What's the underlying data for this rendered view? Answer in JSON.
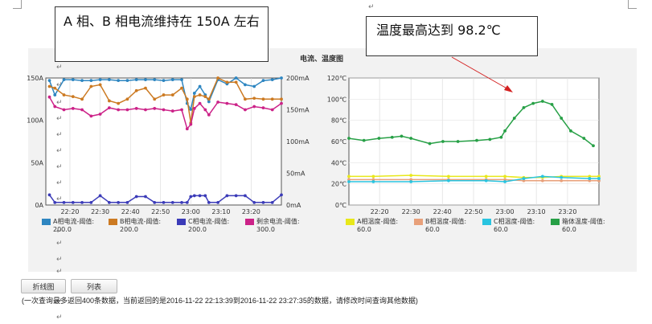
{
  "callouts": {
    "left": "A 相、B 相电流维持在 150A 左右",
    "right": "温度最高达到 98.2℃"
  },
  "chart_title": "电流、温度图",
  "buttons": {
    "line_chart": "折线图",
    "list": "列表"
  },
  "note": "(一次查询最多返回400条数据，当前返回的是2016-11-22 22:13:39到2016-11-22 23:27:35的数据，请修改时间查询其他数据)",
  "colors": {
    "phase_a": "#2e86c1",
    "phase_b": "#cc7a22",
    "phase_c": "#3b3bb8",
    "residual": "#cc2288",
    "temp_a": "#e8e81a",
    "temp_b": "#e8a07a",
    "temp_c": "#29c4e0",
    "cabinet": "#27a046"
  },
  "chart_data": [
    {
      "type": "line",
      "xlim": [
        22.2,
        23.5
      ],
      "x_ticks": [
        22.333,
        22.5,
        22.667,
        22.833,
        23.0,
        23.167,
        23.333
      ],
      "x_tick_labels": [
        "22:20",
        "22:30",
        "22:40",
        "22:50",
        "23:00",
        "23:10",
        "23:20"
      ],
      "ylim": [
        0,
        150
      ],
      "y_ticks": [
        0,
        50,
        100,
        150
      ],
      "y_tick_labels": [
        "0A",
        "50A",
        "100A",
        "150A"
      ],
      "y2lim": [
        0,
        200
      ],
      "y2_ticks": [
        0,
        50,
        100,
        150,
        200
      ],
      "y2_tick_labels": [
        "0mA",
        "50mA",
        "100mA",
        "150mA",
        "200mA"
      ],
      "series": [
        {
          "name": "A相电流-阈值:200.0",
          "color_key": "phase_a",
          "axis": "left",
          "x": [
            22.22,
            22.25,
            22.3,
            22.35,
            22.4,
            22.45,
            22.5,
            22.55,
            22.6,
            22.65,
            22.7,
            22.75,
            22.8,
            22.85,
            22.9,
            22.95,
            22.98,
            23.0,
            23.02,
            23.05,
            23.08,
            23.1,
            23.15,
            23.2,
            23.25,
            23.3,
            23.35,
            23.4,
            23.45,
            23.5
          ],
          "values": [
            147,
            130,
            148,
            148,
            147,
            147,
            148,
            148,
            147,
            147,
            148,
            148,
            148,
            147,
            148,
            148,
            120,
            113,
            132,
            140,
            130,
            122,
            148,
            143,
            150,
            142,
            140,
            147,
            148,
            150
          ]
        },
        {
          "name": "B相电流-阈值:200.0",
          "color_key": "phase_b",
          "axis": "left",
          "x": [
            22.22,
            22.25,
            22.3,
            22.35,
            22.4,
            22.45,
            22.5,
            22.55,
            22.6,
            22.65,
            22.7,
            22.75,
            22.8,
            22.85,
            22.9,
            22.95,
            22.98,
            23.0,
            23.02,
            23.05,
            23.08,
            23.1,
            23.15,
            23.2,
            23.25,
            23.3,
            23.35,
            23.4,
            23.45,
            23.5
          ],
          "values": [
            140,
            138,
            130,
            128,
            125,
            140,
            142,
            123,
            120,
            125,
            135,
            138,
            125,
            130,
            130,
            138,
            125,
            97,
            128,
            130,
            128,
            125,
            150,
            145,
            145,
            125,
            126,
            125,
            125,
            125
          ]
        },
        {
          "name": "C相电流-阈值:200.0",
          "color_key": "phase_c",
          "axis": "left",
          "x": [
            22.22,
            22.25,
            22.3,
            22.35,
            22.4,
            22.45,
            22.5,
            22.55,
            22.6,
            22.65,
            22.7,
            22.75,
            22.8,
            22.85,
            22.9,
            22.95,
            22.98,
            23.0,
            23.02,
            23.05,
            23.08,
            23.1,
            23.15,
            23.2,
            23.25,
            23.3,
            23.35,
            23.4,
            23.45,
            23.5
          ],
          "values": [
            12,
            3,
            3,
            3,
            3,
            3,
            11,
            3,
            3,
            3,
            10,
            10,
            3,
            3,
            3,
            3,
            3,
            10,
            11,
            11,
            11,
            3,
            3,
            11,
            11,
            11,
            3,
            3,
            3,
            12
          ]
        },
        {
          "name": "剩余电流-阈值:300.0",
          "color_key": "residual",
          "axis": "right",
          "x": [
            22.22,
            22.25,
            22.3,
            22.35,
            22.4,
            22.45,
            22.5,
            22.55,
            22.6,
            22.65,
            22.7,
            22.75,
            22.8,
            22.85,
            22.9,
            22.95,
            22.98,
            23.0,
            23.02,
            23.05,
            23.08,
            23.1,
            23.15,
            23.2,
            23.25,
            23.3,
            23.35,
            23.4,
            23.45,
            23.5
          ],
          "values": [
            170,
            155,
            150,
            152,
            150,
            140,
            143,
            153,
            150,
            150,
            152,
            150,
            152,
            150,
            148,
            150,
            120,
            127,
            152,
            160,
            150,
            142,
            162,
            160,
            158,
            150,
            155,
            153,
            150,
            160
          ]
        }
      ]
    },
    {
      "type": "line",
      "xlim": [
        22.17,
        23.5
      ],
      "x_ticks": [
        22.333,
        22.5,
        22.667,
        22.833,
        23.0,
        23.167,
        23.333
      ],
      "x_tick_labels": [
        "22:20",
        "22:30",
        "22:40",
        "22:50",
        "23:00",
        "23:10",
        "23:20"
      ],
      "ylim": [
        0,
        120
      ],
      "y_ticks": [
        0,
        20,
        40,
        60,
        80,
        100,
        120
      ],
      "y_tick_labels": [
        "0℃",
        "20℃",
        "40℃",
        "60℃",
        "80℃",
        "100℃",
        "120℃"
      ],
      "series": [
        {
          "name": "A相温度-阈值:60.0",
          "color_key": "temp_a",
          "x": [
            22.17,
            22.3,
            22.5,
            22.7,
            22.9,
            23.0,
            23.1,
            23.2,
            23.3,
            23.45,
            23.5
          ],
          "values": [
            27,
            27,
            28,
            27,
            27,
            27,
            26,
            26,
            27,
            27,
            27
          ]
        },
        {
          "name": "B相温度-阈值:60.0",
          "color_key": "temp_b",
          "x": [
            22.17,
            22.3,
            22.5,
            22.7,
            22.9,
            23.0,
            23.1,
            23.2,
            23.3,
            23.45,
            23.5
          ],
          "values": [
            24,
            24,
            24,
            24,
            24,
            24,
            23,
            23,
            23,
            23,
            23
          ]
        },
        {
          "name": "C相温度-阈值:60.0",
          "color_key": "temp_c",
          "x": [
            22.17,
            22.3,
            22.5,
            22.7,
            22.9,
            23.0,
            23.1,
            23.2,
            23.3,
            23.45,
            23.5
          ],
          "values": [
            22,
            22,
            22,
            23,
            23,
            22,
            25,
            27,
            26,
            25,
            25
          ]
        },
        {
          "name": "箱体温度-阈值:60.0",
          "color_key": "cabinet",
          "x": [
            22.17,
            22.25,
            22.33,
            22.4,
            22.45,
            22.5,
            22.6,
            22.67,
            22.75,
            22.85,
            22.92,
            22.98,
            23.0,
            23.05,
            23.1,
            23.15,
            23.2,
            23.25,
            23.3,
            23.35,
            23.42,
            23.47
          ],
          "values": [
            63,
            61,
            63,
            64,
            65,
            63,
            58,
            60,
            60,
            61,
            62,
            64,
            70,
            82,
            92,
            96,
            98,
            95,
            82,
            70,
            63,
            56
          ]
        }
      ]
    }
  ]
}
